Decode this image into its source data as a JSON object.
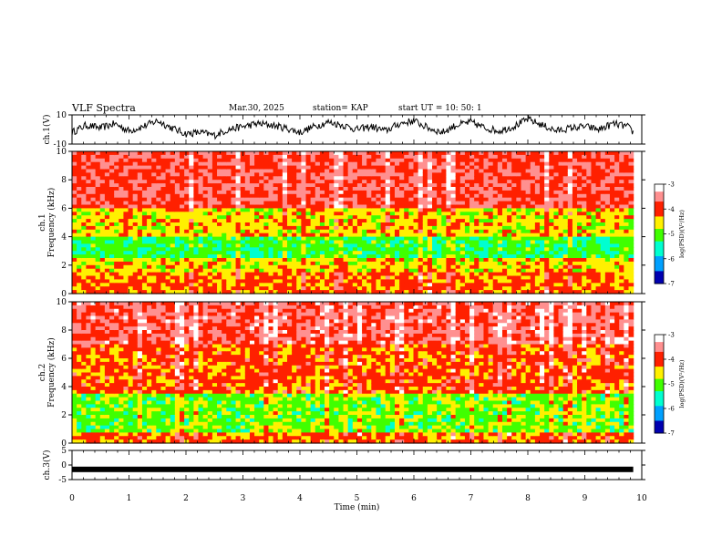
{
  "header": {
    "title": "VLF Spectra",
    "date": "Mar.30, 2025",
    "station": "station= KAP",
    "start": "start  UT  =    10: 50: 1"
  },
  "chart_data": [
    {
      "id": "ch1-waveform",
      "type": "line",
      "ylabel": "ch.1(V)",
      "ylim": [
        -10,
        10
      ],
      "yticks": [
        "10",
        "-10"
      ],
      "x": [
        0.0,
        0.25,
        0.5,
        0.75,
        1.0,
        1.25,
        1.5,
        1.75,
        2.0,
        2.25,
        2.5,
        2.75,
        3.0,
        3.25,
        3.5,
        3.75,
        4.0,
        4.25,
        4.5,
        4.75,
        5.0,
        5.25,
        5.5,
        5.75,
        6.0,
        6.25,
        6.5,
        6.75,
        7.0,
        7.25,
        7.5,
        7.75,
        8.0,
        8.25,
        8.5,
        8.75,
        9.0,
        9.25,
        9.5,
        9.75,
        9.85
      ],
      "values": [
        -2,
        3,
        1,
        4,
        -1,
        2,
        6,
        1,
        -3,
        -2,
        -4,
        0,
        2,
        4,
        3,
        1,
        -2,
        2,
        5,
        3,
        0,
        2,
        -1,
        4,
        6,
        1,
        -2,
        3,
        5,
        1,
        -1,
        2,
        7,
        3,
        -1,
        1,
        2,
        0,
        4,
        2,
        -2
      ]
    },
    {
      "id": "ch1-spectrogram",
      "type": "heatmap",
      "ylabel": "ch.1\nFrequency (kHz)",
      "ylim": [
        0,
        10
      ],
      "yticks": [
        "0",
        "2",
        "4",
        "6",
        "8",
        "10"
      ],
      "colorbar": {
        "label": "log(PSD)(V²/Hz)",
        "range": [
          -7,
          -3
        ],
        "ticks": [
          "-3",
          "-4",
          "-5",
          "-6",
          "-7"
        ]
      }
    },
    {
      "id": "ch2-spectrogram",
      "type": "heatmap",
      "ylabel": "ch.2\nFrequency (kHz)",
      "ylim": [
        0,
        10
      ],
      "yticks": [
        "0",
        "2",
        "4",
        "6",
        "8",
        "10"
      ],
      "colorbar": {
        "label": "log(PSD)(V²/Hz)",
        "range": [
          -7,
          -3
        ],
        "ticks": [
          "-3",
          "-4",
          "-5",
          "-6",
          "-7"
        ]
      }
    },
    {
      "id": "ch3-waveform",
      "type": "line",
      "ylabel": "ch.3(V)",
      "ylim": [
        -5,
        5
      ],
      "yticks": [
        "5",
        "0",
        "-5"
      ],
      "x": [
        0,
        9.85
      ],
      "values": [
        -1.5,
        -1.5
      ]
    }
  ],
  "xaxis": {
    "label": "Time (min)",
    "range": [
      0,
      10
    ],
    "ticks": [
      "0",
      "1",
      "2",
      "3",
      "4",
      "5",
      "6",
      "7",
      "8",
      "9",
      "10"
    ]
  }
}
